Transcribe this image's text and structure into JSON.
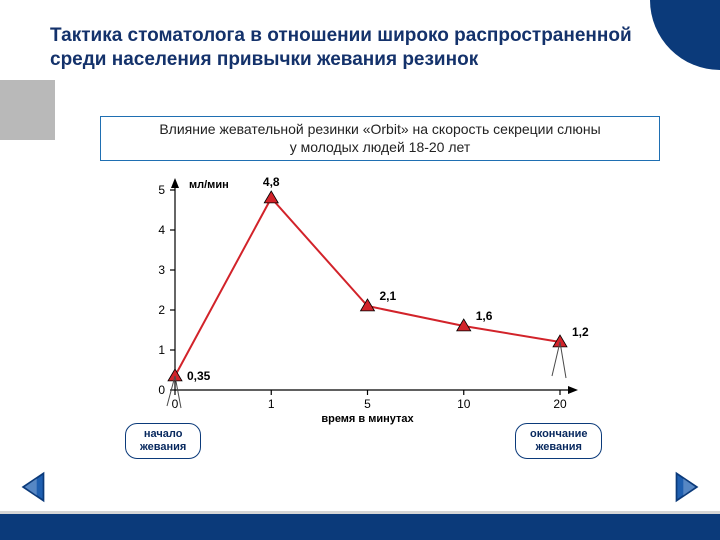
{
  "title": "Тактика стоматолога в отношении широко распространенной среди населения привычки жевания резинок",
  "caption": {
    "line1": "Влияние жевательной резинки «Orbit» на скорость секреции слюны",
    "line2": "у молодых людей 18-20 лет"
  },
  "chart": {
    "type": "line",
    "y_label": "мл/мин",
    "x_label": "время в минутах",
    "x_ticks": [
      "0",
      "1",
      "5",
      "10",
      "20"
    ],
    "y_ticks": [
      0,
      1,
      2,
      3,
      4,
      5
    ],
    "ylim": [
      0,
      5
    ],
    "values": [
      0.35,
      4.8,
      2.1,
      1.6,
      1.2
    ],
    "value_labels": [
      "0,35",
      "4,8",
      "2,1",
      "1,6",
      "1,2"
    ],
    "line_color": "#d2232a",
    "marker_shape": "triangle",
    "marker_size": 7,
    "marker_fill": "#d2232a",
    "marker_stroke": "#000000",
    "background_color": "#ffffff",
    "axis_color": "#000000",
    "label_fontsize": 12,
    "value_fontsize": 12,
    "value_fontweight": "bold"
  },
  "callouts": {
    "start": "начало\nжевания",
    "end": "окончание\nжевания"
  },
  "nav": {
    "prev_title": "previous-slide",
    "next_title": "next-slide",
    "arrow_fill": "#1f5fb0",
    "arrow_edge": "#0b3a7a"
  },
  "theme": {
    "brand_navy": "#0b3a7a",
    "accent_gray": "#b9b9b9",
    "caption_border": "#1f6fb2"
  }
}
